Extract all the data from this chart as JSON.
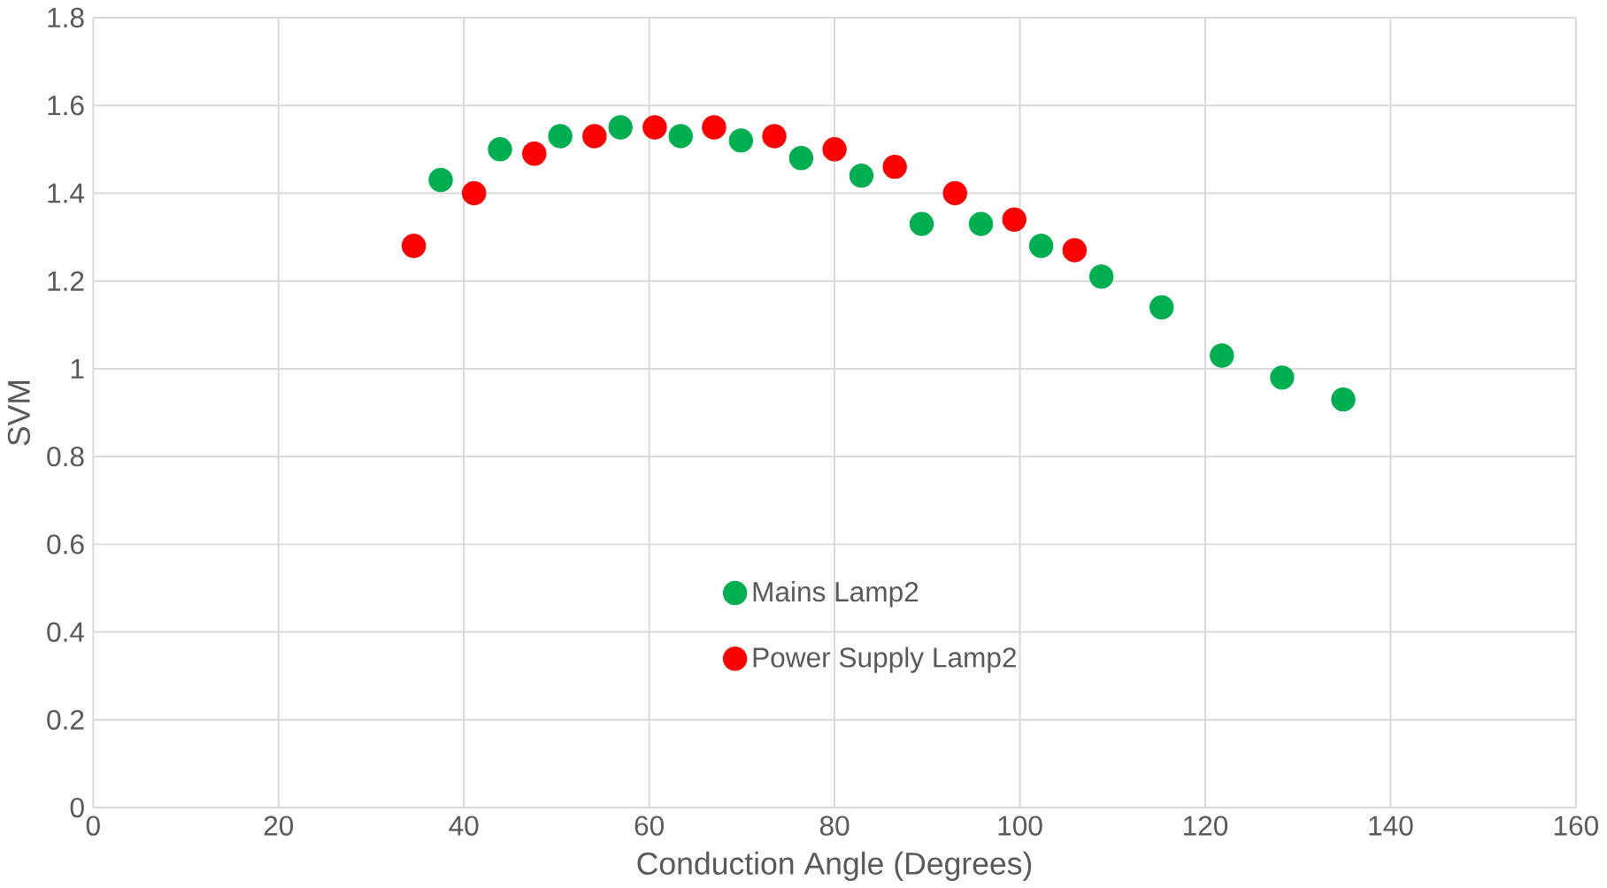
{
  "chart_data": {
    "type": "scatter",
    "xlabel": "Conduction Angle (Degrees)",
    "ylabel": "SVM",
    "xlim": [
      0,
      160
    ],
    "xticks": [
      0,
      20,
      40,
      60,
      80,
      100,
      120,
      140,
      160
    ],
    "ylim": [
      0,
      1.8
    ],
    "yticks": [
      0,
      0.2,
      0.4,
      0.6,
      0.8,
      1,
      1.2,
      1.4,
      1.6,
      1.8
    ],
    "grid": true,
    "legend": "center",
    "marker": "circle",
    "series": [
      {
        "name": "Mains Lamp2",
        "color": "#00b050",
        "x": [
          37.5,
          43.9,
          50.4,
          56.9,
          63.4,
          69.9,
          76.4,
          82.9,
          89.4,
          95.8,
          102.3,
          108.8,
          115.3,
          121.8,
          128.3,
          134.9
        ],
        "values": [
          1.43,
          1.5,
          1.53,
          1.55,
          1.53,
          1.52,
          1.48,
          1.44,
          1.33,
          1.33,
          1.28,
          1.21,
          1.14,
          1.03,
          0.98,
          0.93
        ]
      },
      {
        "name": "Power Supply Lamp2",
        "color": "#ff0000",
        "x": [
          34.6,
          41.1,
          47.6,
          54.1,
          60.6,
          67.0,
          73.5,
          80.0,
          86.5,
          93.0,
          99.4,
          105.9
        ],
        "values": [
          1.28,
          1.4,
          1.49,
          1.53,
          1.55,
          1.55,
          1.53,
          1.5,
          1.46,
          1.4,
          1.34,
          1.27
        ]
      }
    ]
  }
}
